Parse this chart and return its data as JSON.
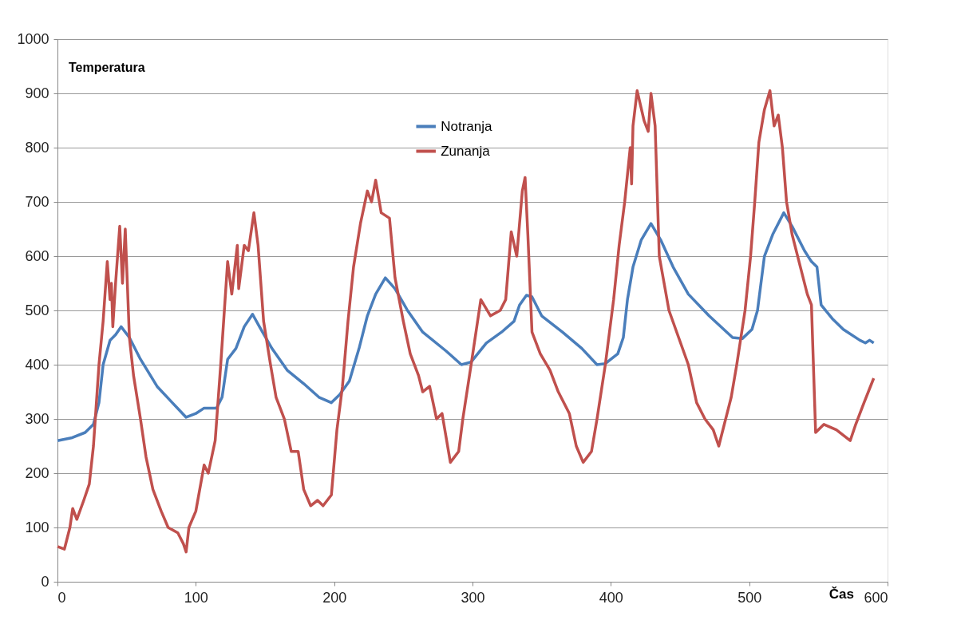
{
  "chart_data": {
    "type": "line",
    "xlabel": "Čas",
    "ylabel": "Temperatura",
    "xlim": [
      0,
      600
    ],
    "xticks": [
      0,
      100,
      200,
      300,
      400,
      500,
      600
    ],
    "ylim": [
      0,
      1000
    ],
    "yticks": [
      0,
      100,
      200,
      300,
      400,
      500,
      600,
      700,
      800,
      900,
      1000
    ],
    "grid": "y",
    "legend": "top",
    "marker": "none",
    "line_style": "solid",
    "series": [
      {
        "name": "Notranja",
        "color": "#4a7ebb",
        "x": [
          0,
          10,
          20,
          26,
          30,
          33,
          38,
          42,
          46,
          52,
          60,
          72,
          83,
          93,
          100,
          106,
          115,
          119,
          123,
          129,
          135,
          141,
          146,
          155,
          166,
          178,
          189,
          198,
          204,
          211,
          218,
          224,
          230,
          237,
          244,
          253,
          264,
          281,
          292,
          299,
          310,
          321,
          330,
          334,
          339,
          343,
          350,
          365,
          379,
          390,
          396,
          405,
          409,
          412,
          416,
          422,
          429,
          436,
          445,
          456,
          471,
          488,
          495,
          502,
          506,
          511,
          517,
          525,
          531,
          540,
          545,
          549,
          552,
          560,
          568,
          580,
          584,
          587,
          590
        ],
        "values": [
          260,
          265,
          275,
          290,
          330,
          400,
          445,
          455,
          470,
          450,
          410,
          360,
          330,
          303,
          310,
          320,
          320,
          340,
          410,
          430,
          470,
          493,
          470,
          430,
          390,
          365,
          340,
          330,
          345,
          370,
          430,
          490,
          530,
          560,
          540,
          500,
          460,
          425,
          400,
          405,
          440,
          460,
          480,
          510,
          528,
          525,
          490,
          460,
          430,
          400,
          402,
          420,
          450,
          520,
          580,
          630,
          660,
          630,
          580,
          530,
          490,
          450,
          448,
          465,
          500,
          600,
          640,
          680,
          655,
          610,
          590,
          580,
          510,
          485,
          465,
          445,
          440,
          445,
          440
        ]
      },
      {
        "name": "Zunanja",
        "color": "#c0504d",
        "x": [
          0,
          5,
          9,
          11,
          14,
          19,
          23,
          26,
          30,
          33,
          36,
          38,
          39,
          40,
          42,
          45,
          47,
          49,
          52,
          55,
          60,
          64,
          69,
          75,
          80,
          87,
          91,
          93,
          95,
          100,
          106,
          109,
          114,
          118,
          123,
          126,
          130,
          131,
          135,
          138,
          142,
          145,
          149,
          154,
          158,
          164,
          169,
          174,
          178,
          183,
          188,
          192,
          198,
          202,
          206,
          210,
          214,
          219,
          224,
          227,
          230,
          234,
          240,
          244,
          250,
          255,
          261,
          264,
          269,
          274,
          278,
          284,
          290,
          293,
          299,
          306,
          313,
          320,
          324,
          328,
          332,
          336,
          338,
          340,
          343,
          349,
          356,
          362,
          370,
          375,
          380,
          386,
          390,
          396,
          402,
          406,
          410,
          414,
          415,
          416,
          419,
          424,
          427,
          429,
          432,
          435,
          442,
          449,
          456,
          462,
          468,
          474,
          478,
          482,
          487,
          491,
          497,
          501,
          504,
          507,
          511,
          515,
          518,
          521,
          524,
          527,
          531,
          537,
          542,
          545,
          548,
          554,
          563,
          568,
          573,
          577,
          583,
          590
        ],
        "values": [
          65,
          60,
          100,
          135,
          115,
          150,
          180,
          250,
          400,
          480,
          590,
          520,
          550,
          470,
          550,
          655,
          550,
          650,
          450,
          380,
          300,
          230,
          170,
          130,
          100,
          90,
          70,
          55,
          100,
          130,
          215,
          200,
          260,
          400,
          590,
          530,
          620,
          540,
          620,
          610,
          680,
          620,
          480,
          400,
          340,
          300,
          240,
          240,
          170,
          140,
          150,
          140,
          160,
          280,
          360,
          480,
          580,
          660,
          720,
          700,
          740,
          680,
          670,
          560,
          480,
          420,
          380,
          350,
          360,
          300,
          310,
          220,
          240,
          300,
          400,
          520,
          490,
          500,
          520,
          645,
          600,
          720,
          745,
          640,
          460,
          420,
          390,
          350,
          310,
          250,
          220,
          240,
          300,
          400,
          520,
          620,
          700,
          800,
          733,
          840,
          905,
          850,
          830,
          900,
          840,
          600,
          500,
          450,
          400,
          330,
          300,
          280,
          250,
          290,
          340,
          400,
          500,
          600,
          700,
          810,
          870,
          905,
          840,
          860,
          800,
          700,
          640,
          580,
          530,
          510,
          275,
          290,
          280,
          270,
          260,
          290,
          330,
          375
        ]
      }
    ]
  }
}
